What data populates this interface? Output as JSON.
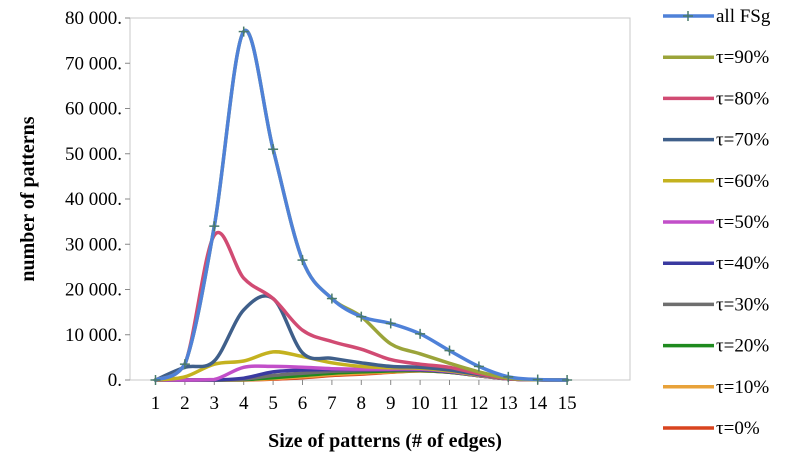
{
  "chart_data": {
    "type": "line",
    "title": "",
    "xlabel": "Size of patterns (# of edges)",
    "ylabel": "number of patterns",
    "x": [
      1,
      2,
      3,
      4,
      5,
      6,
      7,
      8,
      9,
      10,
      11,
      12,
      13,
      14,
      15
    ],
    "x_tick_labels": [
      "1",
      "2",
      "3",
      "4",
      "5",
      "6",
      "7",
      "8",
      "9",
      "10",
      "11",
      "12",
      "13",
      "14",
      "15"
    ],
    "ylim": [
      0,
      80000
    ],
    "y_ticks": [
      0,
      10000,
      20000,
      30000,
      40000,
      50000,
      60000,
      70000,
      80000
    ],
    "y_tick_labels": [
      "0.",
      "10 000.",
      "20 000.",
      "30 000.",
      "40 000.",
      "50 000.",
      "60 000.",
      "70 000.",
      "80 000."
    ],
    "grid": false,
    "legend_position": "right",
    "series": [
      {
        "name": "all FSg",
        "color": "#4f81d8",
        "marker": "plus",
        "values": [
          0,
          3500,
          34000,
          77000,
          51000,
          26500,
          18000,
          14000,
          12500,
          10200,
          6500,
          3000,
          700,
          100,
          0
        ]
      },
      {
        "name": "τ=90%",
        "color": "#9ba43a",
        "marker": "none",
        "values": [
          0,
          3500,
          34000,
          77000,
          51000,
          26500,
          18000,
          14000,
          8000,
          5800,
          3700,
          1800,
          400,
          50,
          0
        ]
      },
      {
        "name": "τ=80%",
        "color": "#d14b73",
        "marker": "none",
        "values": [
          0,
          3500,
          32000,
          22500,
          18000,
          11000,
          8500,
          6800,
          4500,
          3500,
          2800,
          1400,
          300,
          50,
          0
        ]
      },
      {
        "name": "τ=70%",
        "color": "#3f5f8a",
        "marker": "none",
        "values": [
          0,
          2800,
          4200,
          15500,
          18000,
          6000,
          4800,
          3800,
          3000,
          2800,
          2200,
          1200,
          300,
          50,
          0
        ]
      },
      {
        "name": "τ=60%",
        "color": "#c4b21f",
        "marker": "none",
        "values": [
          0,
          700,
          3500,
          4200,
          6200,
          5200,
          3800,
          3000,
          2700,
          2600,
          2000,
          1100,
          300,
          50,
          0
        ]
      },
      {
        "name": "τ=50%",
        "color": "#c24fc9",
        "marker": "none",
        "values": [
          0,
          0,
          100,
          2800,
          3000,
          2800,
          2500,
          2400,
          2400,
          2400,
          1900,
          1000,
          250,
          50,
          0
        ]
      },
      {
        "name": "τ=40%",
        "color": "#3a3aa0",
        "marker": "none",
        "values": [
          0,
          0,
          0,
          400,
          1800,
          2200,
          2300,
          2300,
          2300,
          2300,
          1800,
          1000,
          250,
          50,
          0
        ]
      },
      {
        "name": "τ=30%",
        "color": "#6e6e6e",
        "marker": "none",
        "values": [
          0,
          0,
          0,
          200,
          1000,
          1500,
          1900,
          2100,
          2200,
          2200,
          1800,
          1000,
          250,
          50,
          0
        ]
      },
      {
        "name": "τ=20%",
        "color": "#1f8a1f",
        "marker": "none",
        "values": [
          0,
          0,
          0,
          100,
          500,
          1000,
          1500,
          1800,
          2000,
          2100,
          1700,
          950,
          250,
          50,
          0
        ]
      },
      {
        "name": "τ=10%",
        "color": "#e8a23a",
        "marker": "none",
        "values": [
          0,
          0,
          0,
          50,
          300,
          700,
          1200,
          1500,
          1800,
          2000,
          1700,
          950,
          250,
          50,
          0
        ]
      },
      {
        "name": "τ=0%",
        "color": "#d9441e",
        "marker": "none",
        "values": [
          0,
          0,
          0,
          0,
          200,
          500,
          1000,
          1300,
          1700,
          2000,
          1700,
          950,
          250,
          50,
          0
        ]
      }
    ]
  }
}
